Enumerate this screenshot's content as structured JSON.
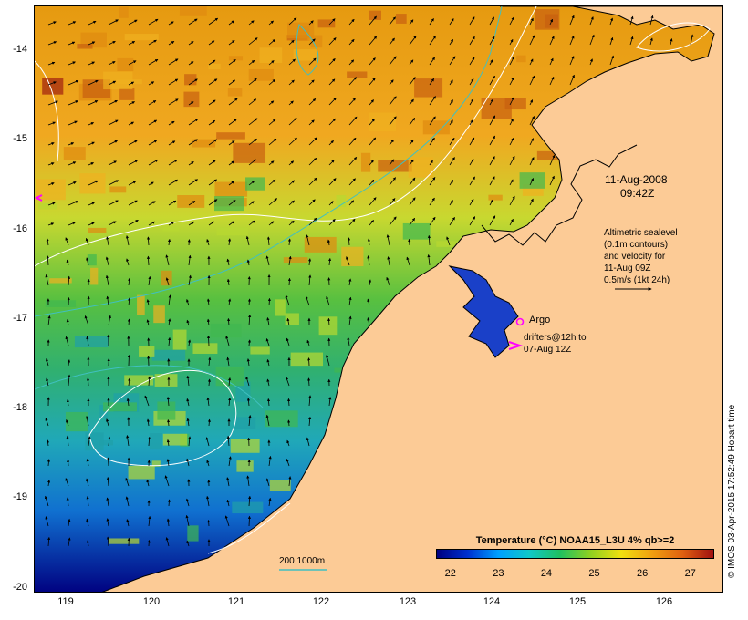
{
  "map": {
    "lat_labels": [
      "-14",
      "-15",
      "-16",
      "-17",
      "-18",
      "-19",
      "-20"
    ],
    "lon_labels": [
      "119",
      "120",
      "121",
      "122",
      "123",
      "124",
      "125",
      "126"
    ],
    "date": "11-Aug-2008",
    "time": "09:42Z",
    "altimetry_note": [
      "Altimetric sealevel",
      "(0.1m contours)",
      "and velocity for",
      "11-Aug 09Z",
      "0.5m/s (1kt 24h)"
    ],
    "argo_label": "Argo",
    "drifters_note": [
      "drifters@12h to",
      "07-Aug 12Z"
    ],
    "isobath_label": "200  1000m",
    "credit": "© IMOS 03-Apr-2015 17:52:49 Hobart time",
    "colors": {
      "land": "#fccb96",
      "argo": "#ff00ff",
      "drifter": "#ff00ff",
      "isobath": "#40c0c0",
      "contour": "#ffffff",
      "coast": "#000000"
    }
  },
  "colorbar": {
    "title": "Temperature (°C) NOAA15_L3U 4% qb>=2",
    "ticks": [
      "22",
      "23",
      "24",
      "25",
      "26",
      "27"
    ],
    "range": [
      21.7,
      27.5
    ]
  }
}
